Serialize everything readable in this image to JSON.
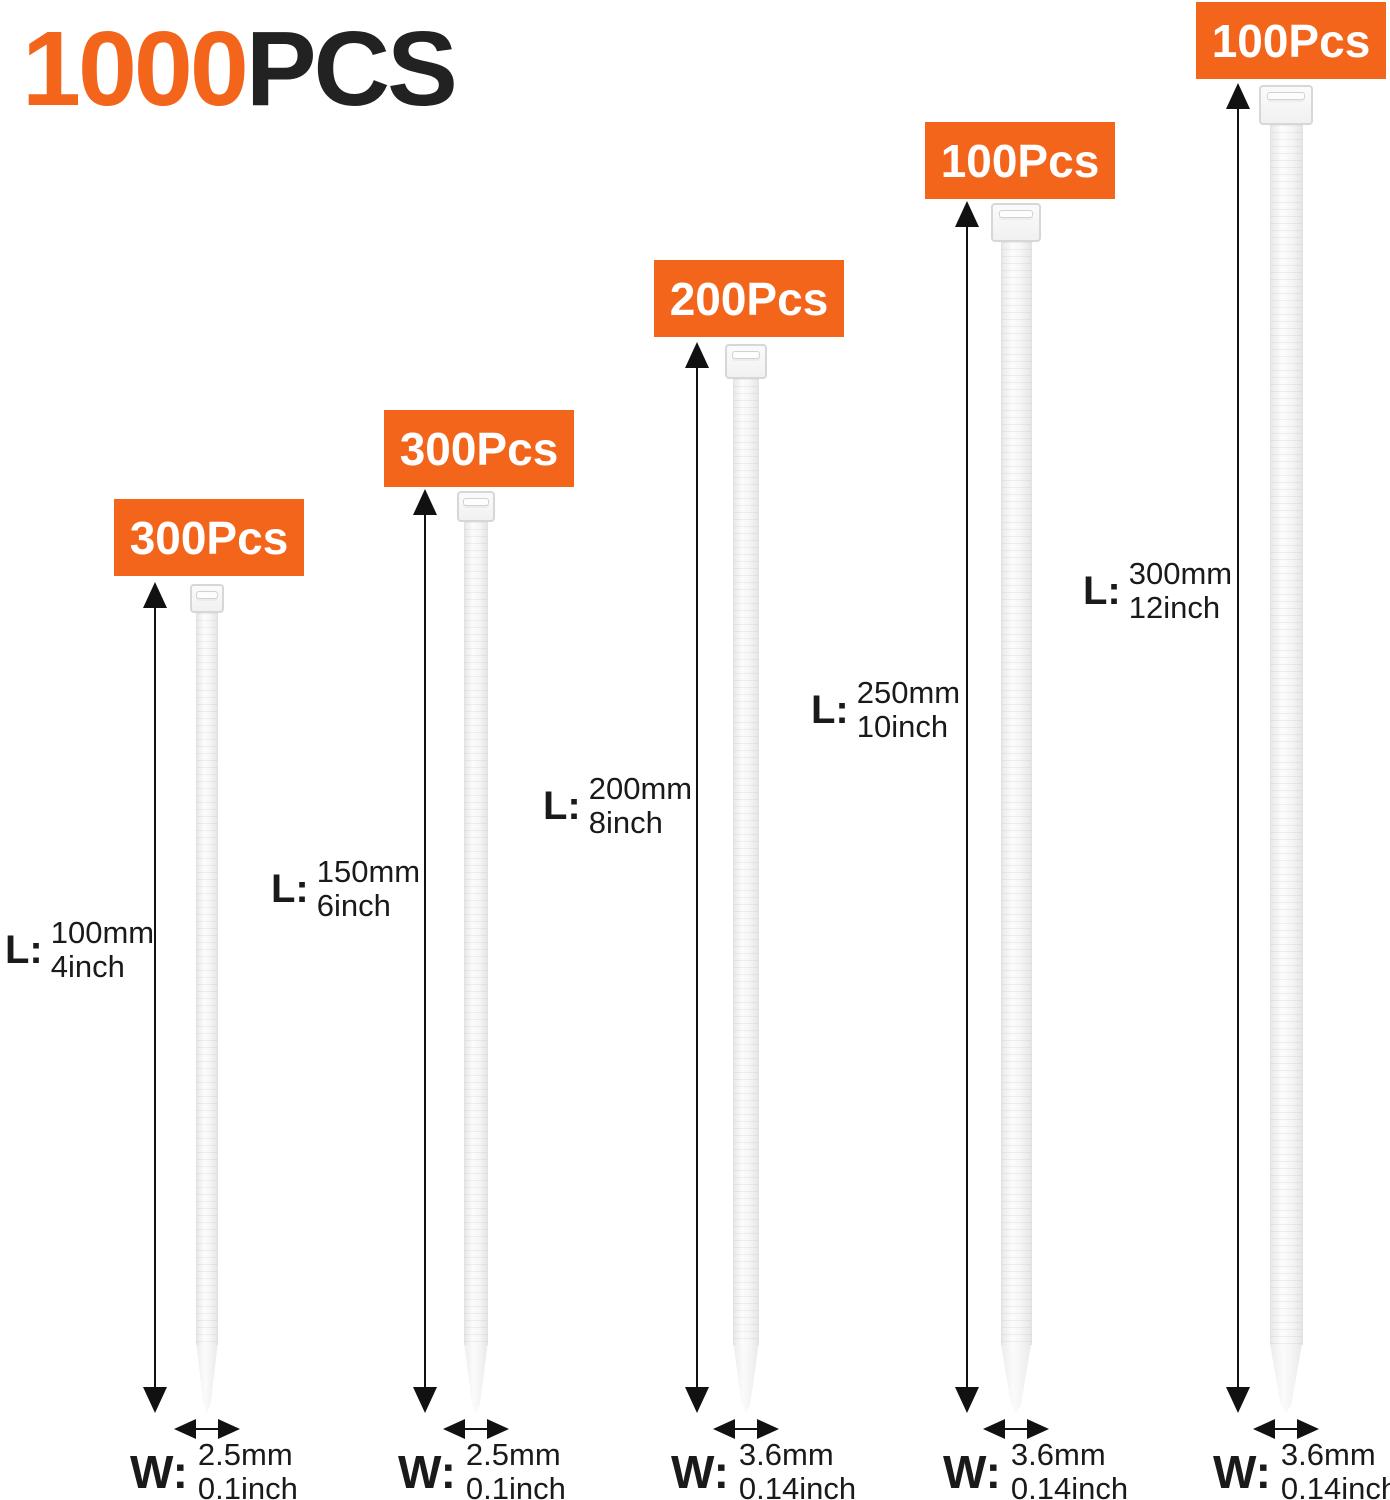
{
  "title": {
    "orange": "1000",
    "black": "PCS"
  },
  "colors": {
    "accent_orange": "#F4651C",
    "title_black": "#222222",
    "annotation_ink": "#1a1a1a",
    "tie_white": "#f7f7f7"
  },
  "labels": {
    "length_prefix": "L:",
    "width_prefix": "W:"
  },
  "ties": [
    {
      "qty": "300Pcs",
      "length_mm": "100mm",
      "length_inch": "4inch",
      "width_mm": "2.5mm",
      "width_inch": "0.1inch"
    },
    {
      "qty": "300Pcs",
      "length_mm": "150mm",
      "length_inch": "6inch",
      "width_mm": "2.5mm",
      "width_inch": "0.1inch"
    },
    {
      "qty": "200Pcs",
      "length_mm": "200mm",
      "length_inch": "8inch",
      "width_mm": "3.6mm",
      "width_inch": "0.14inch"
    },
    {
      "qty": "100Pcs",
      "length_mm": "250mm",
      "length_inch": "10inch",
      "width_mm": "3.6mm",
      "width_inch": "0.14inch"
    },
    {
      "qty": "100Pcs",
      "length_mm": "300mm",
      "length_inch": "12inch",
      "width_mm": "3.6mm",
      "width_inch": "0.14inch"
    }
  ]
}
